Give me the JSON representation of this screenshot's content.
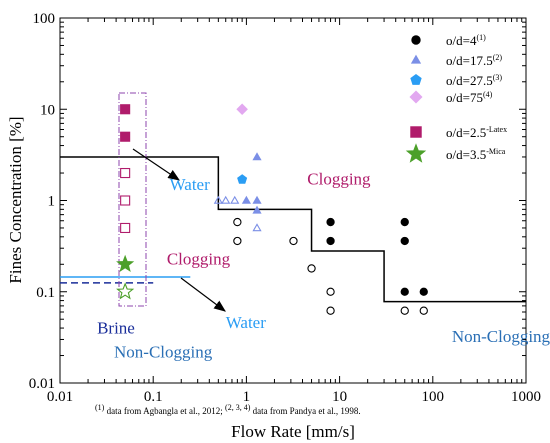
{
  "chart_data": {
    "type": "scatter",
    "xscale": "log",
    "yscale": "log",
    "xlim": [
      0.01,
      1000
    ],
    "ylim": [
      0.01,
      100
    ],
    "xlabel": "Flow Rate [mm/s]",
    "ylabel": "Fines Concentration [%]",
    "xticks": [
      "0.01",
      "0.1",
      "1",
      "10",
      "100",
      "1000"
    ],
    "yticks": [
      "0.01",
      "0.1",
      "1",
      "10",
      "100"
    ],
    "legend_position": "top-right",
    "series": [
      {
        "name": "o/d=4",
        "sup": "(1)",
        "marker": "circle",
        "color": "#000000",
        "points": [
          {
            "x": 8,
            "y": 0.58,
            "filled": true
          },
          {
            "x": 8,
            "y": 0.36,
            "filled": true
          },
          {
            "x": 50,
            "y": 0.58,
            "filled": true
          },
          {
            "x": 50,
            "y": 0.36,
            "filled": true
          },
          {
            "x": 50,
            "y": 0.1,
            "filled": true
          },
          {
            "x": 80,
            "y": 0.1,
            "filled": true
          },
          {
            "x": 0.8,
            "y": 0.58,
            "filled": false
          },
          {
            "x": 0.8,
            "y": 0.36,
            "filled": false
          },
          {
            "x": 3.2,
            "y": 0.36,
            "filled": false
          },
          {
            "x": 5,
            "y": 0.18,
            "filled": false
          },
          {
            "x": 8,
            "y": 0.1,
            "filled": false
          },
          {
            "x": 8,
            "y": 0.062,
            "filled": false
          },
          {
            "x": 50,
            "y": 0.062,
            "filled": false
          },
          {
            "x": 80,
            "y": 0.062,
            "filled": false
          }
        ]
      },
      {
        "name": "o/d=17.5",
        "sup": "(2)",
        "marker": "triangle",
        "color": "#7B8FE6",
        "points": [
          {
            "x": 1.3,
            "y": 3.0,
            "filled": true
          },
          {
            "x": 1.0,
            "y": 1.0,
            "filled": true
          },
          {
            "x": 1.3,
            "y": 1.0,
            "filled": true
          },
          {
            "x": 1.3,
            "y": 0.78,
            "filled": true
          },
          {
            "x": 0.5,
            "y": 1.0,
            "filled": false
          },
          {
            "x": 0.6,
            "y": 1.0,
            "filled": false
          },
          {
            "x": 0.75,
            "y": 1.0,
            "filled": false
          },
          {
            "x": 1.3,
            "y": 0.5,
            "filled": false
          }
        ]
      },
      {
        "name": "o/d=27.5",
        "sup": "(3)",
        "marker": "pentagon",
        "color": "#2A9DF4",
        "points": [
          {
            "x": 0.9,
            "y": 1.7,
            "filled": true
          }
        ]
      },
      {
        "name": "o/d=75",
        "sup": "(4)",
        "marker": "diamond",
        "color": "#E2A8F0",
        "points": [
          {
            "x": 0.9,
            "y": 10,
            "filled": true
          }
        ]
      },
      {
        "name": "o/d=2.5",
        "sup": "-Latex",
        "marker": "square",
        "color": "#B01C6B",
        "points": [
          {
            "x": 0.05,
            "y": 10,
            "filled": true
          },
          {
            "x": 0.05,
            "y": 5,
            "filled": true
          },
          {
            "x": 0.05,
            "y": 2,
            "filled": false
          },
          {
            "x": 0.05,
            "y": 1,
            "filled": false
          },
          {
            "x": 0.05,
            "y": 0.5,
            "filled": false
          }
        ]
      },
      {
        "name": "o/d=3.5",
        "sup": "-Mica",
        "marker": "star",
        "color": "#4CA02A",
        "points": [
          {
            "x": 0.05,
            "y": 0.2,
            "filled": true
          },
          {
            "x": 0.05,
            "y": 0.1,
            "filled": false
          }
        ]
      }
    ],
    "boundary_lines": [
      {
        "color": "#000000",
        "dash": false,
        "points": [
          [
            0.01,
            3
          ],
          [
            0.5,
            3
          ],
          [
            0.5,
            0.8
          ],
          [
            5,
            0.8
          ],
          [
            5,
            0.28
          ],
          [
            30,
            0.28
          ],
          [
            30,
            0.078
          ],
          [
            1000,
            0.078
          ]
        ]
      },
      {
        "color": "#2A9DF4",
        "dash": false,
        "points": [
          [
            0.01,
            0.145
          ],
          [
            0.25,
            0.145
          ]
        ]
      },
      {
        "color": "#1A2E9A",
        "dash": true,
        "points": [
          [
            0.01,
            0.125
          ],
          [
            0.1,
            0.125
          ]
        ]
      }
    ],
    "annotations": {
      "clogging_top": {
        "text": "Clogging",
        "color": "#B01C6B",
        "x": 4.5,
        "y": 1.5
      },
      "water_top": {
        "text": "Water",
        "color": "#2A9DF4",
        "x": 0.15,
        "y": 1.3
      },
      "clogging_mid": {
        "text": "Clogging",
        "color": "#B01C6B",
        "x": 0.14,
        "y": 0.2
      },
      "brine": {
        "text": "Brine",
        "color": "#1A2E9A",
        "x": 0.025,
        "y": 0.035
      },
      "water_bottom": {
        "text": "Water",
        "color": "#2A9DF4",
        "x": 0.6,
        "y": 0.04
      },
      "nonclog_left": {
        "text": "Non-Clogging",
        "color": "#2A6FB5",
        "x": 0.038,
        "y": 0.019
      },
      "nonclog_right": {
        "text": "Non-Clogging",
        "color": "#2A6FB5",
        "x": 160,
        "y": 0.028
      }
    },
    "footnote": {
      "sup1": "(1)",
      "part1": " data from Agbangla et al., 2012; ",
      "sup2": "(2, 3, 4)",
      "part2": " data from Pandya et al., 1998."
    }
  }
}
